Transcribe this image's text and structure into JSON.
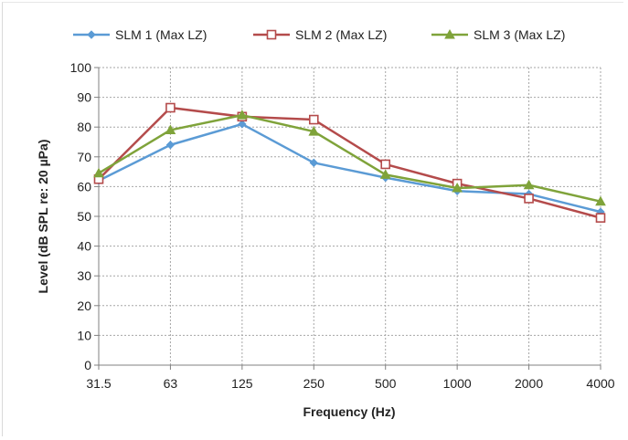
{
  "chart_data": {
    "type": "line",
    "categories": [
      "31.5",
      "63",
      "125",
      "250",
      "500",
      "1000",
      "2000",
      "4000"
    ],
    "series": [
      {
        "name": "SLM 1 (Max LZ)",
        "color": "#5b9bd5",
        "marker": "diamond",
        "values": [
          62.0,
          74.0,
          81.0,
          68.0,
          63.0,
          58.5,
          57.5,
          51.5
        ]
      },
      {
        "name": "SLM 2 (Max LZ)",
        "color": "#b44b4b",
        "marker": "square-open",
        "values": [
          62.5,
          86.5,
          83.5,
          82.5,
          67.5,
          61.0,
          56.0,
          49.5
        ]
      },
      {
        "name": "SLM 3 (Max LZ)",
        "color": "#7fa33a",
        "marker": "triangle",
        "values": [
          64.5,
          79.0,
          84.0,
          78.5,
          64.0,
          59.5,
          60.5,
          55.0
        ]
      }
    ],
    "xlabel": "Frequency (Hz)",
    "ylabel": "Level (dB SPL re: 20 µPa)",
    "ylim": [
      0,
      100
    ],
    "yticks": [
      "0",
      "10",
      "20",
      "30",
      "40",
      "50",
      "60",
      "70",
      "80",
      "90",
      "100"
    ],
    "grid": true,
    "legend": "top"
  }
}
